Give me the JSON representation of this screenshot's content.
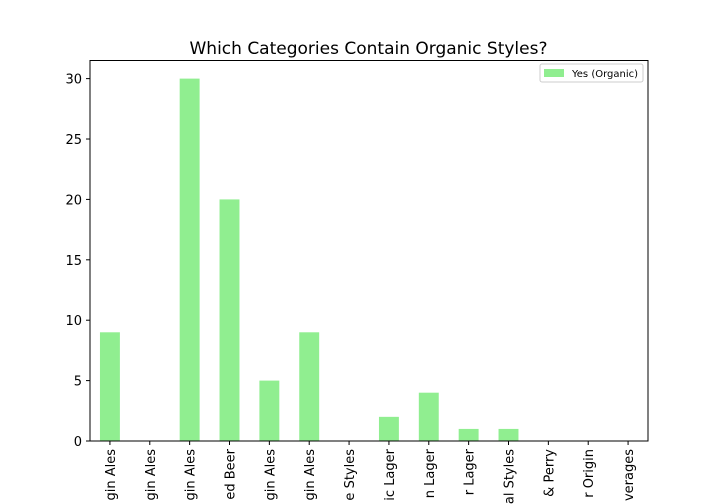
{
  "chart_data": {
    "type": "bar",
    "title": "Which Categories Contain Organic Styles?",
    "xlabel": "",
    "ylabel": "",
    "categories": [
      "gin Ales",
      "gin Ales",
      "gin Ales",
      "ed Beer",
      "gin Ales",
      "gin Ales",
      "e Styles",
      "ic Lager",
      "n Lager",
      "r Lager",
      "al Styles",
      "& Perry",
      "r Origin",
      "verages"
    ],
    "series": [
      {
        "name": "Yes (Organic)",
        "color": "#90ee90",
        "values": [
          9,
          0,
          30,
          20,
          5,
          9,
          0,
          2,
          4,
          1,
          1,
          0,
          0,
          0
        ]
      }
    ],
    "ylim": [
      0,
      31.5
    ],
    "yticks": [
      0,
      5,
      10,
      15,
      20,
      25,
      30
    ],
    "grid": false,
    "legend_position": "top-right"
  }
}
